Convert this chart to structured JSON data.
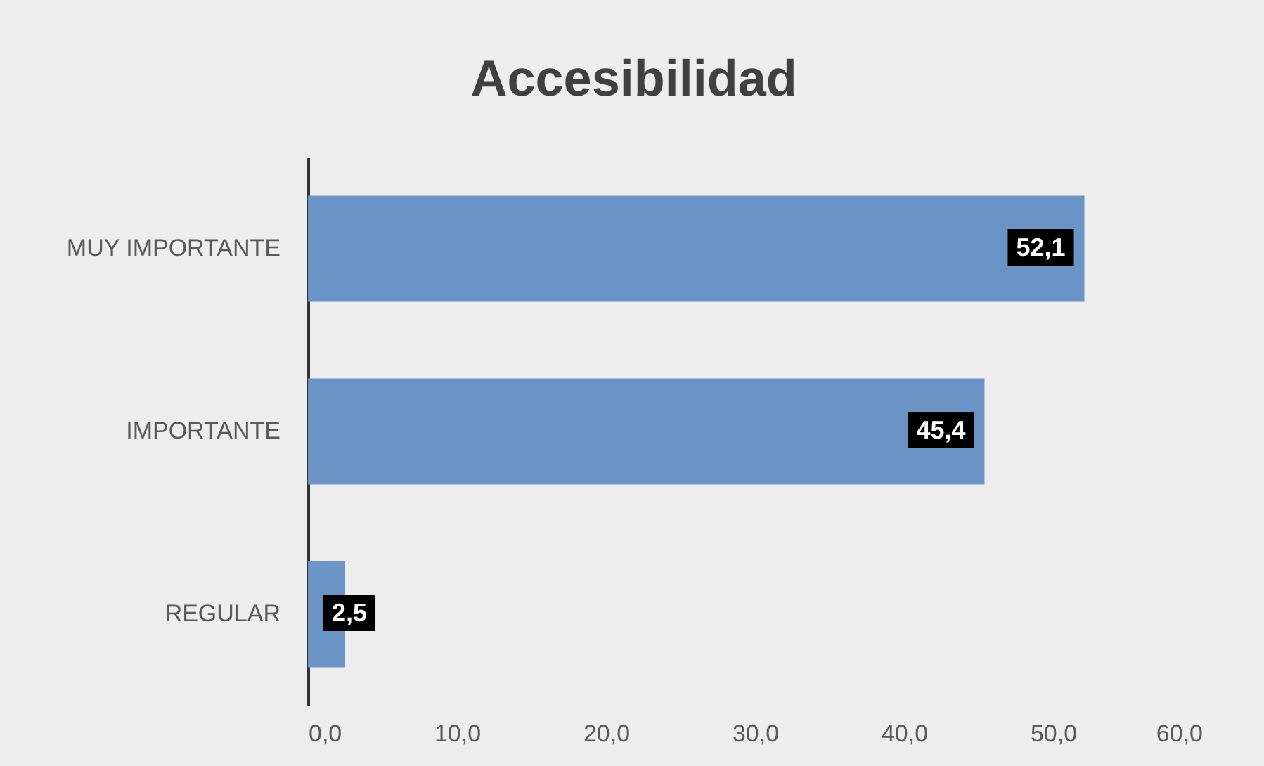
{
  "chart_data": {
    "type": "bar",
    "orientation": "horizontal",
    "title": "Accesibilidad",
    "categories": [
      "MUY IMPORTANTE",
      "IMPORTANTE",
      "REGULAR"
    ],
    "values": [
      52.1,
      45.4,
      2.5
    ],
    "value_labels": [
      "52,1",
      "45,4",
      "2,5"
    ],
    "color": "#6a93c6",
    "xlim": [
      0,
      60
    ],
    "xticks": [
      {
        "value": 0,
        "label": "0,0"
      },
      {
        "value": 10,
        "label": "10,0"
      },
      {
        "value": 20,
        "label": "20,0"
      },
      {
        "value": 30,
        "label": "30,0"
      },
      {
        "value": 40,
        "label": "40,0"
      },
      {
        "value": 50,
        "label": "50,0"
      },
      {
        "value": 60,
        "label": "60,0"
      }
    ],
    "grid": false
  }
}
